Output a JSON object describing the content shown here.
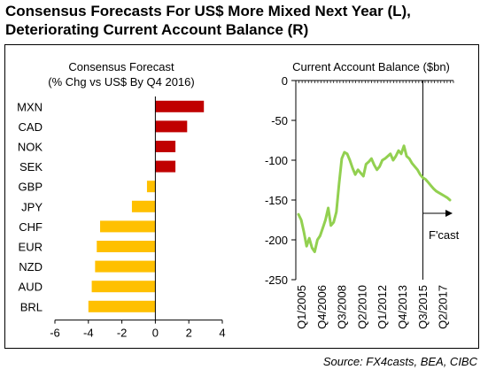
{
  "title_line1": "Consensus Forecasts For US$ More Mixed Next Year (L),",
  "title_line2": "Deteriorating Current Account Balance (R)",
  "source": "Source: FX4casts, BEA, CIBC",
  "colors": {
    "positive": "#c00000",
    "negative": "#ffc000",
    "line": "#92d050"
  },
  "chart_data": [
    {
      "type": "bar",
      "orientation": "horizontal",
      "title": "Consensus Forecast",
      "subtitle": "(% Chg vs US$ By Q4 2016)",
      "categories": [
        "MXN",
        "CAD",
        "NOK",
        "SEK",
        "GBP",
        "JPY",
        "CHF",
        "EUR",
        "NZD",
        "AUD",
        "BRL"
      ],
      "values": [
        2.9,
        1.9,
        1.2,
        1.2,
        -0.5,
        -1.4,
        -3.3,
        -3.5,
        -3.6,
        -3.8,
        -4.0
      ],
      "xlim": [
        -6,
        4
      ],
      "xticks": [
        "-6",
        "-4",
        "-2",
        "0",
        "2",
        "4"
      ]
    },
    {
      "type": "line",
      "title": "Current Account Balance ($bn)",
      "ylim": [
        -250,
        0
      ],
      "yticks": [
        "0",
        "-50",
        "-100",
        "-150",
        "-200",
        "-250"
      ],
      "xticks": [
        "Q1/2005",
        "Q4/2006",
        "Q3/2008",
        "Q2/2010",
        "Q1/2012",
        "Q4/2013",
        "Q3/2015",
        "Q2/2017"
      ],
      "series": [
        {
          "values": [
            -168,
            -175,
            -190,
            -208,
            -198,
            -210,
            -215,
            -200,
            -195,
            -185,
            -175,
            -160,
            -182,
            -178,
            -165,
            -130,
            -98,
            -90,
            -92,
            -100,
            -110,
            -118,
            -112,
            -116,
            -120,
            -105,
            -102,
            -98,
            -106,
            -112,
            -108,
            -100,
            -98,
            -95,
            -92,
            -100,
            -95,
            -88,
            -92,
            -82,
            -95,
            -98,
            -104,
            -108,
            -112,
            -118,
            -122,
            -124,
            -128,
            -132,
            -136,
            -139,
            -141,
            -143,
            -145,
            -147,
            -150
          ]
        }
      ],
      "forecast_index": 46,
      "annotation": "F'cast"
    }
  ]
}
